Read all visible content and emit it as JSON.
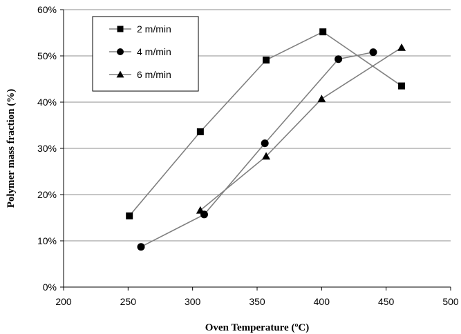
{
  "chart_data": {
    "type": "line",
    "title": "",
    "xlabel": "Oven Temperature (ºC)",
    "ylabel": "Polymer mass fraction (%)",
    "xlim": [
      200,
      500
    ],
    "ylim": [
      0,
      60
    ],
    "x_ticks": [
      "200",
      "250",
      "300",
      "350",
      "400",
      "450",
      "500"
    ],
    "y_ticks": [
      "0%",
      "10%",
      "20%",
      "30%",
      "40%",
      "50%",
      "60%"
    ],
    "grid": "horizontal",
    "legend_position": "top-left",
    "colors": {
      "line": "#808080",
      "marker": "#000000"
    },
    "series": [
      {
        "name": "2 m/min",
        "marker": "square",
        "points": [
          [
            251,
            15.4
          ],
          [
            306,
            33.6
          ],
          [
            357,
            49.1
          ],
          [
            401,
            55.2
          ],
          [
            462,
            43.5
          ]
        ]
      },
      {
        "name": "4 m/min",
        "marker": "circle",
        "points": [
          [
            260,
            8.7
          ],
          [
            309,
            15.7
          ],
          [
            356,
            31.1
          ],
          [
            413,
            49.3
          ],
          [
            440,
            50.8
          ]
        ]
      },
      {
        "name": "6 m/min",
        "marker": "triangle",
        "points": [
          [
            306,
            16.6
          ],
          [
            357,
            28.3
          ],
          [
            400,
            40.7
          ],
          [
            462,
            51.8
          ]
        ]
      }
    ]
  }
}
